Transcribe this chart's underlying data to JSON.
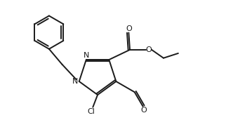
{
  "background_color": "#ffffff",
  "line_color": "#1a1a1a",
  "line_width": 1.4,
  "font_size": 8,
  "figsize": [
    3.22,
    1.98
  ],
  "dpi": 100,
  "xlim": [
    0.0,
    9.5
  ],
  "ylim": [
    0.0,
    5.8
  ]
}
